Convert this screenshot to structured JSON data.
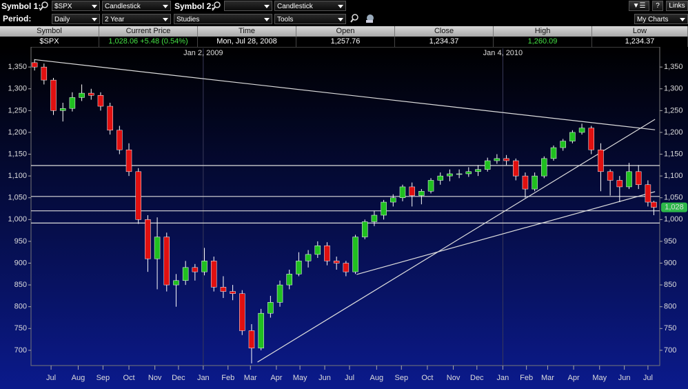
{
  "toolbar": {
    "symbol1_label": "Symbol 1:",
    "symbol1": "$SPX",
    "chart_type1": "Candlestick",
    "symbol2_label": "Symbol 2:",
    "chart_type2": "Candlestick",
    "period_label": "Period:",
    "period": "Daily",
    "range": "2 Year",
    "studies": "Studies",
    "tools": "Tools",
    "help": "?",
    "links": "Links",
    "my_charts": "My Charts"
  },
  "quote_table": {
    "headers": [
      "Symbol",
      "Current Price",
      "Time",
      "Open",
      "Close",
      "High",
      "Low"
    ],
    "row": [
      "$SPX",
      "1,028.06 +5.48 (0.54%)",
      "Mon, Jul 28, 2008",
      "1,257.76",
      "1,234.37",
      "1,260.09",
      "1,234.37"
    ]
  },
  "chart_data": {
    "type": "candlestick",
    "up_color": "#20c020",
    "down_color": "#e01010",
    "x": [
      0,
      8,
      16,
      24,
      32,
      40,
      48,
      56,
      64,
      72,
      80,
      88,
      96,
      104,
      112,
      120,
      128,
      136,
      144,
      152,
      160,
      168,
      176,
      184,
      192,
      200,
      208,
      216,
      224,
      232,
      240,
      248,
      256,
      264,
      272,
      280,
      288,
      296,
      304,
      312,
      320,
      328,
      336,
      344,
      352,
      360,
      368,
      376,
      384,
      392,
      400,
      408,
      416,
      424,
      432,
      440,
      448,
      456,
      464,
      472,
      480,
      488,
      496,
      504,
      512,
      520,
      525
    ],
    "open": [
      1360,
      1350,
      1320,
      1250,
      1255,
      1280,
      1290,
      1285,
      1260,
      1205,
      1160,
      1110,
      1000,
      910,
      960,
      850,
      860,
      890,
      880,
      905,
      845,
      835,
      830,
      745,
      705,
      785,
      810,
      850,
      875,
      905,
      920,
      940,
      905,
      900,
      880,
      960,
      995,
      1010,
      1040,
      1050,
      1075,
      1055,
      1065,
      1090,
      1100,
      1105,
      1105,
      1110,
      1115,
      1135,
      1140,
      1135,
      1100,
      1070,
      1100,
      1140,
      1165,
      1180,
      1200,
      1210,
      1160,
      1110,
      1090,
      1075,
      1110,
      1080,
      1040
    ],
    "high": [
      1368,
      1358,
      1325,
      1268,
      1292,
      1310,
      1300,
      1292,
      1268,
      1215,
      1175,
      1118,
      1010,
      1005,
      970,
      875,
      905,
      898,
      935,
      915,
      870,
      850,
      838,
      760,
      795,
      825,
      860,
      885,
      925,
      930,
      950,
      948,
      915,
      905,
      965,
      1000,
      1020,
      1045,
      1058,
      1080,
      1085,
      1070,
      1095,
      1108,
      1115,
      1115,
      1120,
      1125,
      1142,
      1150,
      1148,
      1140,
      1108,
      1108,
      1145,
      1170,
      1185,
      1205,
      1220,
      1215,
      1175,
      1115,
      1100,
      1130,
      1125,
      1090,
      1043
    ],
    "low": [
      1342,
      1310,
      1240,
      1225,
      1248,
      1272,
      1275,
      1250,
      1195,
      1150,
      1100,
      990,
      880,
      840,
      835,
      800,
      850,
      860,
      872,
      835,
      820,
      815,
      735,
      670,
      700,
      775,
      800,
      840,
      870,
      890,
      912,
      895,
      885,
      870,
      875,
      955,
      985,
      1000,
      1030,
      1042,
      1030,
      1035,
      1060,
      1080,
      1088,
      1095,
      1098,
      1100,
      1110,
      1128,
      1125,
      1090,
      1050,
      1065,
      1095,
      1135,
      1158,
      1175,
      1195,
      1150,
      1065,
      1055,
      1040,
      1070,
      1070,
      1030,
      1010
    ],
    "close": [
      1350,
      1320,
      1250,
      1255,
      1280,
      1290,
      1285,
      1260,
      1205,
      1160,
      1110,
      1000,
      910,
      960,
      850,
      860,
      890,
      880,
      905,
      845,
      835,
      830,
      745,
      705,
      785,
      810,
      850,
      875,
      905,
      920,
      940,
      905,
      900,
      880,
      960,
      995,
      1010,
      1040,
      1050,
      1075,
      1055,
      1065,
      1090,
      1100,
      1105,
      1105,
      1110,
      1115,
      1135,
      1140,
      1135,
      1100,
      1070,
      1100,
      1140,
      1165,
      1180,
      1200,
      1210,
      1160,
      1110,
      1090,
      1075,
      1110,
      1080,
      1040,
      1028.06
    ],
    "last_price_label": "1,028",
    "xlim": [
      -3,
      530
    ],
    "ylim": [
      665,
      1393
    ],
    "yticks": [
      700,
      750,
      800,
      850,
      900,
      950,
      {
        "value": 1000,
        "label": "1,000"
      },
      {
        "value": 1050,
        "label": "1,050"
      },
      {
        "value": 1100,
        "label": "1,100"
      },
      {
        "value": 1150,
        "label": "1,150"
      },
      {
        "value": 1200,
        "label": "1,200"
      },
      {
        "value": 1250,
        "label": "1,250"
      },
      {
        "value": 1300,
        "label": "1,300"
      },
      {
        "value": 1350,
        "label": "1,350"
      }
    ],
    "xticks": [
      {
        "value": 14,
        "label": "Jul"
      },
      {
        "value": 37,
        "label": "Aug"
      },
      {
        "value": 58,
        "label": "Sep"
      },
      {
        "value": 80,
        "label": "Oct"
      },
      {
        "value": 102,
        "label": "Nov"
      },
      {
        "value": 122,
        "label": "Dec"
      },
      {
        "value": 143,
        "label": "Jan"
      },
      {
        "value": 164,
        "label": "Feb"
      },
      {
        "value": 183,
        "label": "Mar"
      },
      {
        "value": 205,
        "label": "Apr"
      },
      {
        "value": 225,
        "label": "May"
      },
      {
        "value": 246,
        "label": "Jun"
      },
      {
        "value": 267,
        "label": "Jul"
      },
      {
        "value": 290,
        "label": "Aug"
      },
      {
        "value": 311,
        "label": "Sep"
      },
      {
        "value": 333,
        "label": "Oct"
      },
      {
        "value": 355,
        "label": "Nov"
      },
      {
        "value": 375,
        "label": "Dec"
      },
      {
        "value": 397,
        "label": "Jan"
      },
      {
        "value": 417,
        "label": "Feb"
      },
      {
        "value": 435,
        "label": "Mar"
      },
      {
        "value": 457,
        "label": "Apr"
      },
      {
        "value": 479,
        "label": "May"
      },
      {
        "value": 500,
        "label": "Jun"
      },
      {
        "value": 520,
        "label": "Jul"
      }
    ],
    "year_markers": [
      {
        "value": 143,
        "label": "Jan 2, 2009"
      },
      {
        "value": 397,
        "label": "Jan 4, 2010"
      }
    ],
    "hlines": [
      1124,
      1053,
      1020,
      992
    ],
    "trendlines": [
      {
        "x": [
          0,
          526
        ],
        "y": [
          1367,
          1206
        ]
      },
      {
        "x": [
          189,
          526
        ],
        "y": [
          673,
          1230
        ]
      },
      {
        "x": [
          273,
          526
        ],
        "y": [
          874,
          1064
        ]
      }
    ]
  }
}
